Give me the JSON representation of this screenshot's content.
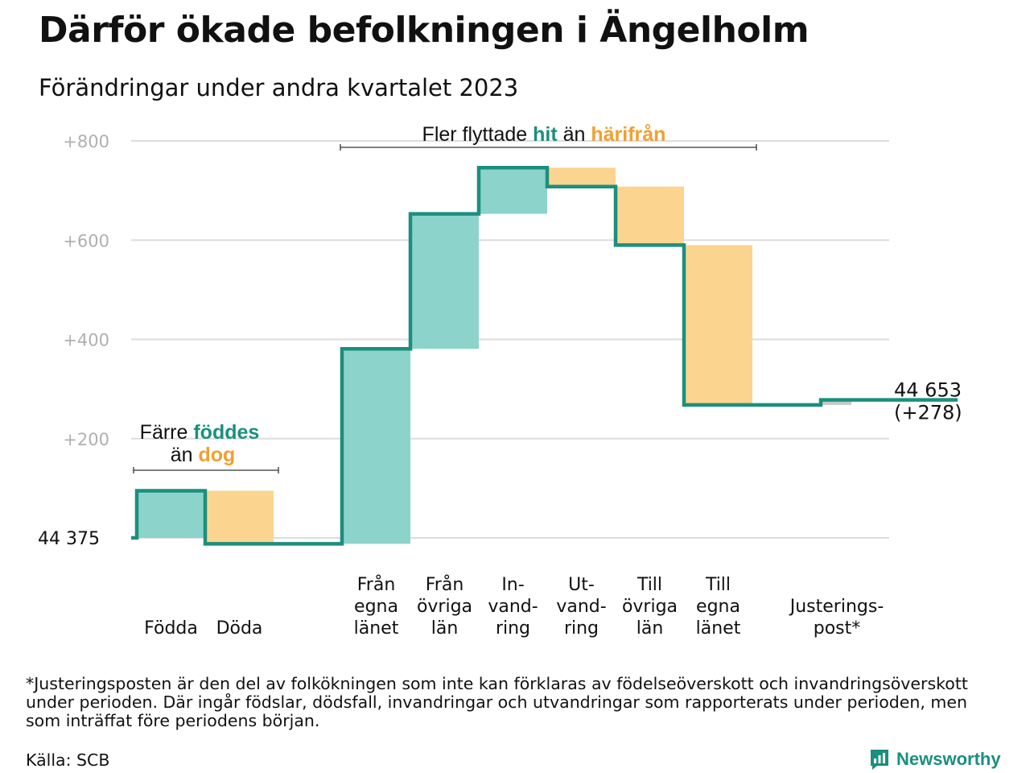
{
  "header": {
    "title": "Därför ökade befolkningen i Ängelholm",
    "subtitle": "Förändringar under andra kvartalet 2023"
  },
  "chart_data": {
    "type": "waterfall",
    "baseline_label": "44  375",
    "baseline_population": 44375,
    "end_label": "44 653",
    "end_change_label": "(+278)",
    "ylim": [
      -20,
      860
    ],
    "y_ticks": [
      {
        "value": 200,
        "label": "+200"
      },
      {
        "value": 400,
        "label": "+400"
      },
      {
        "value": 600,
        "label": "+600"
      },
      {
        "value": 800,
        "label": "+800"
      }
    ],
    "steps": [
      {
        "id": "fodda",
        "label_lines": [
          "Födda"
        ],
        "change": 95,
        "kind": "in"
      },
      {
        "id": "doda",
        "label_lines": [
          "Döda"
        ],
        "change": -107,
        "kind": "out"
      },
      {
        "id": "gap",
        "label_lines": [],
        "change": 0,
        "kind": "gap"
      },
      {
        "id": "fran-egna-lanet",
        "label_lines": [
          "Från",
          "egna",
          "länet"
        ],
        "change": 393,
        "kind": "in"
      },
      {
        "id": "fran-ovriga-lan",
        "label_lines": [
          "Från",
          "övriga",
          "län"
        ],
        "change": 272,
        "kind": "in"
      },
      {
        "id": "invandring",
        "label_lines": [
          "In-",
          "vand-",
          "ring"
        ],
        "change": 93,
        "kind": "in"
      },
      {
        "id": "utvandring",
        "label_lines": [
          "Ut-",
          "vand-",
          "ring"
        ],
        "change": -38,
        "kind": "out"
      },
      {
        "id": "till-ovriga-lan",
        "label_lines": [
          "Till",
          "övriga",
          "län"
        ],
        "change": -118,
        "kind": "out"
      },
      {
        "id": "till-egna-lanet",
        "label_lines": [
          "Till",
          "egna",
          "länet"
        ],
        "change": -322,
        "kind": "out"
      },
      {
        "id": "gap2",
        "label_lines": [],
        "change": 0,
        "kind": "gap"
      },
      {
        "id": "justeringspost",
        "label_lines": [
          "Justerings-",
          "post*"
        ],
        "change": 10,
        "kind": "adjust"
      },
      {
        "id": "tail",
        "label_lines": [],
        "change": 0,
        "kind": "gap"
      }
    ],
    "annotations": {
      "births": {
        "prefix": "Färre",
        "highlight_in": "föddes",
        "middle": "än",
        "highlight_out": "dog"
      },
      "migration": {
        "prefix": "Fler flyttade",
        "highlight_in": "hit",
        "middle": "än",
        "highlight_out": "härifrån"
      }
    },
    "colors": {
      "line": "#1b8f7e",
      "in_fill": "#8cd4cb",
      "out_fill": "#fbd58f",
      "adjust_fill": "#c8c8c8",
      "in_text": "#1b8f7e",
      "out_text": "#f0a030",
      "grid": "#dddddd",
      "tick_text": "#b0b0b0"
    }
  },
  "footnote": "*Justeringsposten är den del av folkökningen som inte kan förklaras av födelseöverskott och invandringsöverskott under perioden. Där ingår födslar, dödsfall, invandringar och utvandringar som rapporterats under perioden, men som inträffat före periodens början.",
  "source": "Källa: SCB",
  "brand": {
    "name": "Newsworthy",
    "icon": "newsworthy-logo-icon"
  }
}
